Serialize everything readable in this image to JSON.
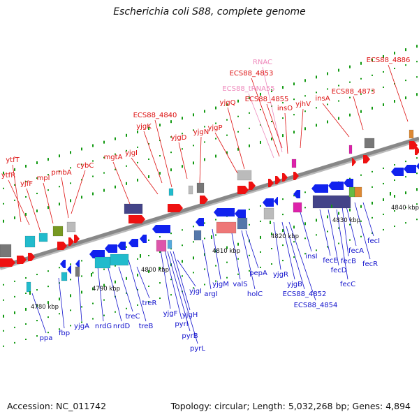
{
  "title": "Escherichia coli S88, complete genome",
  "footer": {
    "accession": "Accession: NC_011742",
    "summary": "Topology: circular; Length: 5,032,268 bp; Genes: 4,894"
  },
  "colors": {
    "top_label": "#dd1111",
    "top_rna_label": "#ee88bb",
    "bottom_label": "#1111cc",
    "backbone": "#888888",
    "forward_gene": "#ee1111",
    "reverse_gene": "#1122ee",
    "tick": "#119911"
  },
  "ticks": [
    "4780 kbp",
    "4790 kbp",
    "4800 kbp",
    "4810 kbp",
    "4820 kbp",
    "4830 kbp",
    "4840 kbp"
  ],
  "top_labels": [
    {
      "text": "ytfT",
      "kind": "gene"
    },
    {
      "text": "ytfR",
      "kind": "gene"
    },
    {
      "text": "yjfF",
      "kind": "gene"
    },
    {
      "text": "mpl",
      "kind": "gene"
    },
    {
      "text": "pmbA",
      "kind": "gene"
    },
    {
      "text": "cybC",
      "kind": "gene"
    },
    {
      "text": "mgtA",
      "kind": "gene"
    },
    {
      "text": "yjgI",
      "kind": "gene"
    },
    {
      "text": "yjgK",
      "kind": "gene"
    },
    {
      "text": "ECS88_4840",
      "kind": "gene"
    },
    {
      "text": "yjgD",
      "kind": "gene"
    },
    {
      "text": "yjgN",
      "kind": "gene"
    },
    {
      "text": "yjgP",
      "kind": "gene"
    },
    {
      "text": "yjgQ",
      "kind": "gene"
    },
    {
      "text": "ECS88_tRNA55",
      "kind": "rna"
    },
    {
      "text": "ECS88_4853",
      "kind": "gene"
    },
    {
      "text": "RNAC",
      "kind": "rna"
    },
    {
      "text": "ECS88_4855",
      "kind": "gene"
    },
    {
      "text": "insO",
      "kind": "gene"
    },
    {
      "text": "yjhV",
      "kind": "gene"
    },
    {
      "text": "insA",
      "kind": "gene"
    },
    {
      "text": "ECS88_4873",
      "kind": "gene"
    },
    {
      "text": "ECS88_4886",
      "kind": "gene"
    }
  ],
  "bottom_labels": [
    {
      "text": "ppa"
    },
    {
      "text": "fbp"
    },
    {
      "text": "yjgA"
    },
    {
      "text": "nrdG"
    },
    {
      "text": "nrdD"
    },
    {
      "text": "treC"
    },
    {
      "text": "treB"
    },
    {
      "text": "treR"
    },
    {
      "text": "yjgF"
    },
    {
      "text": "pyrI"
    },
    {
      "text": "pyrB"
    },
    {
      "text": "pyrL"
    },
    {
      "text": "yjgH"
    },
    {
      "text": "yjgI"
    },
    {
      "text": "argI"
    },
    {
      "text": "yjgM"
    },
    {
      "text": "valS"
    },
    {
      "text": "holC"
    },
    {
      "text": "pepA"
    },
    {
      "text": "yjgR"
    },
    {
      "text": "yjgB"
    },
    {
      "text": "ECS88_4852"
    },
    {
      "text": "ECS88_4854"
    },
    {
      "text": "insI"
    },
    {
      "text": "fecE"
    },
    {
      "text": "fecD"
    },
    {
      "text": "fecC"
    },
    {
      "text": "fecB"
    },
    {
      "text": "fecA"
    },
    {
      "text": "fecR"
    },
    {
      "text": "fecI"
    }
  ]
}
